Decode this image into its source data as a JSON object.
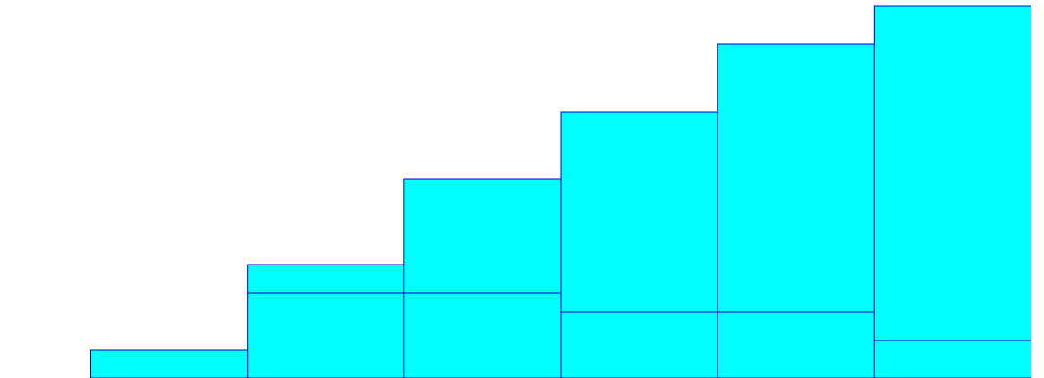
{
  "chart_data": {
    "type": "bar",
    "stacked": true,
    "categories": [
      "",
      "",
      "",
      "",
      "",
      ""
    ],
    "series": [
      {
        "values": [
          31,
          95,
          95,
          74,
          74,
          42
        ]
      },
      {
        "values": [
          0,
          32,
          128,
          224,
          300,
          374
        ]
      }
    ],
    "ylim": [
      0,
      423
    ],
    "grid": false,
    "legend": "none",
    "colors": {
      "fill": "#00ffff",
      "stroke": "#0000cc",
      "background": "#ffffff"
    }
  }
}
